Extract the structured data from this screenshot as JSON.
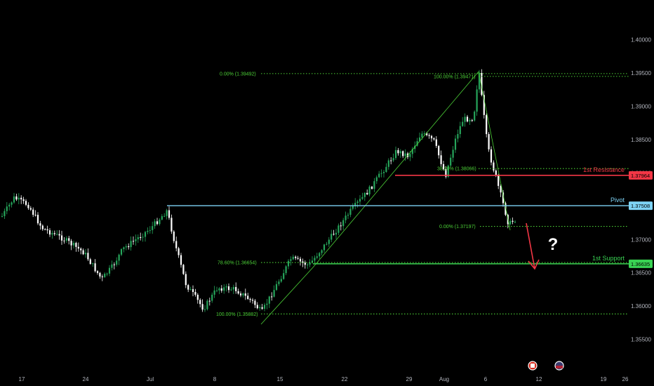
{
  "chart_data": {
    "type": "candlestick",
    "instrument_note": "price chart with fibonacci levels",
    "x_ticks": [
      "17",
      "24",
      "Jul",
      "8",
      "15",
      "22",
      "29",
      "Aug",
      "6",
      "12",
      "19",
      "26"
    ],
    "y_ticks": [
      "1.40000",
      "1.39500",
      "1.39000",
      "1.38500",
      "1.38000",
      "1.37500",
      "1.37000",
      "1.36500",
      "1.36000",
      "1.35500"
    ],
    "ylim": [
      1.352,
      1.4045
    ],
    "levels": {
      "resistance": {
        "label": "1st Resistance",
        "value": "1.37964",
        "color": "#f23645"
      },
      "pivot": {
        "label": "Pivot",
        "value": "1.37508",
        "color": "#7ed3f5"
      },
      "support": {
        "label": "1st Support",
        "value": "1.36635",
        "color": "#39d353"
      }
    },
    "fib_labels": [
      {
        "text": "0.00% (1.39492)",
        "value": 1.39492
      },
      {
        "text": "100.00% (1.39471)",
        "value": 1.39471
      },
      {
        "text": "38.20% (1.38066)",
        "value": 1.38066
      },
      {
        "text": "0.00% (1.37197)",
        "value": 1.37197
      },
      {
        "text": "78.60% (1.36654)",
        "value": 1.36654
      },
      {
        "text": "100.00% (1.35882)",
        "value": 1.35882
      }
    ],
    "annotation": "?",
    "colors": {
      "up": "#26a65b",
      "down": "#ffffff",
      "fib": "#4cd137",
      "arrow": "#f23645",
      "grid": "#0a0a0a"
    }
  }
}
